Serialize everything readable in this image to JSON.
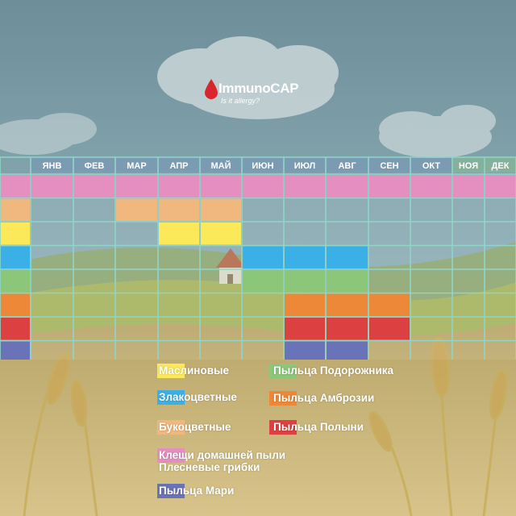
{
  "logo": {
    "brand": "ImmunoCAP",
    "tagline": "Is it allergy?"
  },
  "colors": {
    "sky": "#7f9fa8",
    "field": "#c9b577",
    "grid": "#8fd6c8",
    "month_header": "#6f8fc0",
    "month_header_green": "#8ccf7a",
    "month_text": "#ffffff"
  },
  "chart_data": {
    "type": "table",
    "title": "",
    "months": [
      "ЯНВ",
      "ФЕВ",
      "МАР",
      "АПР",
      "МАЙ",
      "ИЮН",
      "ИЮЛ",
      "АВГ",
      "СЕН",
      "ОКТ",
      "НОЯ",
      "ДЕК"
    ],
    "series": [
      {
        "key": "mites_molds",
        "color": "#e48fbf",
        "months_active": [
          1,
          2,
          3,
          4,
          5,
          6,
          7,
          8,
          9,
          10,
          11,
          12
        ]
      },
      {
        "key": "rosaceae",
        "color": "#f0b87f",
        "months_active": [
          3,
          4,
          5
        ]
      },
      {
        "key": "olive",
        "color": "#fbe95a",
        "months_active": [
          4,
          5
        ]
      },
      {
        "key": "grasses",
        "color": "#3ab0e6",
        "months_active": [
          6,
          7,
          8
        ]
      },
      {
        "key": "plantain",
        "color": "#8cc679",
        "months_active": [
          6,
          7,
          8
        ]
      },
      {
        "key": "ragweed",
        "color": "#ec8838",
        "months_active": [
          7,
          8,
          9
        ]
      },
      {
        "key": "wormwood",
        "color": "#dc4040",
        "months_active": [
          7,
          8,
          9
        ]
      },
      {
        "key": "chenopodium",
        "color": "#6a72b8",
        "months_active": [
          7,
          8
        ]
      }
    ]
  },
  "legend": {
    "olive": "Маслиновые",
    "grasses": "Злакоцветные",
    "rosaceae": "Букоцветные",
    "mites": "Клещи домашней пыли",
    "molds": "Плесневые грибки",
    "chenopodium": "Пыльца Мари",
    "plantain": "Пыльца Подорожника",
    "ragweed": "Пыльца Амброзии",
    "wormwood": "Пыльца Полыни"
  }
}
